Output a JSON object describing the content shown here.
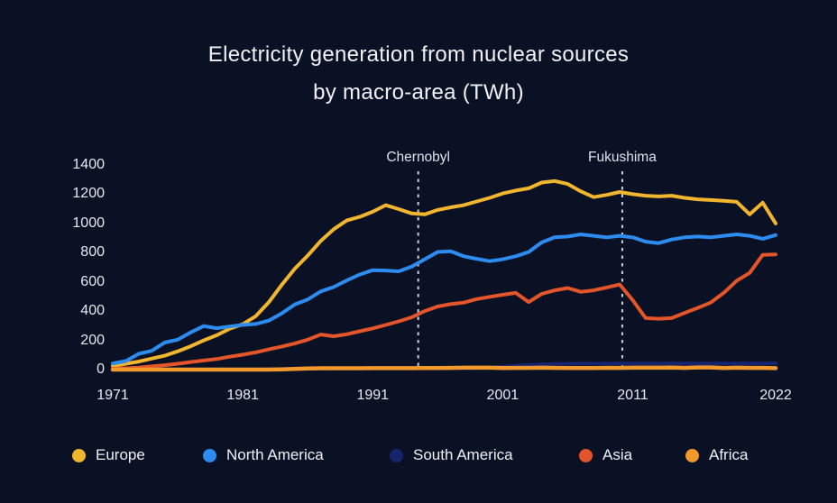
{
  "theme": {
    "background": "#0b1124",
    "text": "#f0f2f7",
    "axis_text": "#e6e9f0",
    "dashed_line": "#ccd1dc"
  },
  "title": {
    "line1": "Electricity generation from nuclear sources",
    "line2": "by macro-area (TWh)"
  },
  "legend": {
    "items": [
      {
        "label": "Europe",
        "color": "#f2b62e"
      },
      {
        "label": "North America",
        "color": "#2d8cf0"
      },
      {
        "label": "South America",
        "color": "#16246e"
      },
      {
        "label": "Asia",
        "color": "#e5552a"
      },
      {
        "label": "Africa",
        "color": "#f3982b"
      }
    ]
  },
  "chart_data": {
    "type": "line",
    "title": "Electricity generation from nuclear sources by macro-area (TWh)",
    "xlabel": "",
    "ylabel": "TWh",
    "xlim": [
      1971,
      2022
    ],
    "ylim": [
      0,
      1400
    ],
    "grid": false,
    "legend_position": "bottom",
    "xticks": [
      1971,
      1981,
      1991,
      2001,
      2011,
      2022
    ],
    "yticks": [
      0,
      200,
      400,
      600,
      800,
      1000,
      1200,
      1400
    ],
    "annotations": [
      {
        "label": "Chernobyl",
        "at_year": 1994.5
      },
      {
        "label": "Fukushima",
        "at_year": 2010.2
      }
    ],
    "x": [
      1971,
      1972,
      1973,
      1974,
      1975,
      1976,
      1977,
      1978,
      1979,
      1980,
      1981,
      1982,
      1983,
      1984,
      1985,
      1986,
      1987,
      1988,
      1989,
      1990,
      1991,
      1992,
      1993,
      1994,
      1995,
      1996,
      1997,
      1998,
      1999,
      2000,
      2001,
      2002,
      2003,
      2004,
      2005,
      2006,
      2007,
      2008,
      2009,
      2010,
      2011,
      2012,
      2013,
      2014,
      2015,
      2016,
      2017,
      2018,
      2019,
      2020,
      2021,
      2022
    ],
    "series": [
      {
        "name": "Europe",
        "color": "#f2b62e",
        "values": [
          25,
          40,
          55,
          75,
          95,
          125,
          160,
          200,
          235,
          280,
          310,
          365,
          460,
          580,
          690,
          780,
          880,
          960,
          1020,
          1045,
          1080,
          1125,
          1098,
          1068,
          1062,
          1092,
          1110,
          1125,
          1150,
          1175,
          1205,
          1225,
          1240,
          1280,
          1290,
          1270,
          1220,
          1180,
          1195,
          1215,
          1200,
          1190,
          1185,
          1190,
          1175,
          1165,
          1160,
          1155,
          1148,
          1062,
          1142,
          1000
        ]
      },
      {
        "name": "North America",
        "color": "#2d8cf0",
        "values": [
          42,
          58,
          108,
          128,
          185,
          205,
          255,
          298,
          283,
          295,
          305,
          312,
          335,
          385,
          445,
          480,
          535,
          565,
          610,
          650,
          680,
          678,
          672,
          705,
          755,
          805,
          810,
          775,
          758,
          742,
          755,
          775,
          805,
          870,
          905,
          910,
          925,
          915,
          905,
          915,
          905,
          875,
          865,
          890,
          905,
          910,
          905,
          915,
          925,
          915,
          895,
          920
        ]
      },
      {
        "name": "South America",
        "color": "#16246e",
        "values": [
          0,
          0,
          0,
          1,
          1,
          1,
          1,
          1,
          1,
          2,
          2,
          2,
          3,
          4,
          6,
          7,
          7,
          7,
          8,
          9,
          9,
          9,
          9,
          9,
          9,
          10,
          10,
          10,
          11,
          14,
          20,
          26,
          31,
          35,
          38,
          40,
          41,
          41,
          41,
          42,
          42,
          42,
          42,
          42,
          42,
          42,
          42,
          42,
          42,
          42,
          42,
          43
        ]
      },
      {
        "name": "Asia",
        "color": "#e5552a",
        "values": [
          6,
          9,
          14,
          22,
          30,
          40,
          52,
          62,
          72,
          88,
          102,
          118,
          138,
          158,
          178,
          205,
          240,
          228,
          242,
          262,
          282,
          305,
          330,
          358,
          400,
          432,
          448,
          458,
          482,
          498,
          512,
          525,
          462,
          518,
          542,
          558,
          532,
          542,
          562,
          582,
          475,
          352,
          348,
          352,
          388,
          422,
          458,
          525,
          608,
          662,
          785,
          788
        ]
      },
      {
        "name": "Africa",
        "color": "#f3982b",
        "values": [
          0,
          0,
          0,
          0,
          0,
          0,
          0,
          0,
          0,
          0,
          0,
          0,
          0,
          2,
          5,
          8,
          9,
          9,
          9,
          9,
          10,
          10,
          10,
          10,
          11,
          11,
          12,
          13,
          13,
          13,
          11,
          12,
          12,
          13,
          12,
          11,
          11,
          11,
          12,
          12,
          13,
          13,
          13,
          14,
          12,
          15,
          15,
          11,
          13,
          12,
          12,
          10
        ]
      }
    ]
  }
}
